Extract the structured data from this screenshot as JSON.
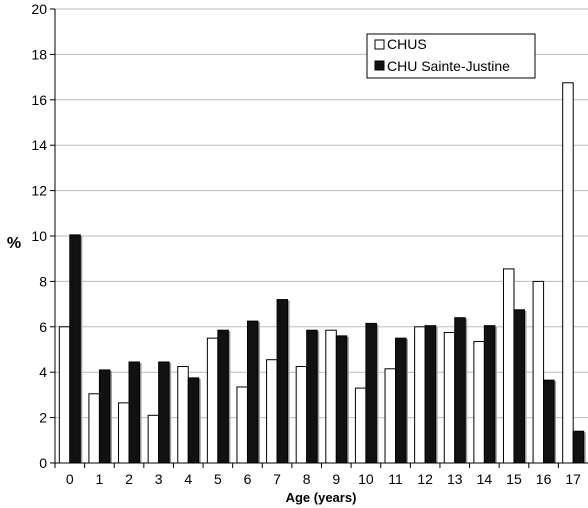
{
  "chart_data": {
    "type": "bar",
    "xlabel": "Age (years)",
    "ylabel": "%",
    "ylim": [
      0,
      20
    ],
    "yticks": [
      0,
      2,
      4,
      6,
      8,
      10,
      12,
      14,
      16,
      18,
      20
    ],
    "grid": "horizontal",
    "legend_position": "top-right",
    "categories": [
      "0",
      "1",
      "2",
      "3",
      "4",
      "5",
      "6",
      "7",
      "8",
      "9",
      "10",
      "11",
      "12",
      "13",
      "14",
      "15",
      "16",
      "17"
    ],
    "series": [
      {
        "name": "CHUS",
        "color": "#ffffff",
        "values": [
          6.0,
          3.05,
          2.65,
          2.1,
          4.25,
          5.5,
          3.35,
          4.55,
          4.25,
          5.85,
          3.3,
          4.15,
          6.0,
          5.75,
          5.35,
          8.55,
          8.0,
          16.75
        ]
      },
      {
        "name": "CHU Sainte-Justine",
        "color": "#111111",
        "values": [
          10.05,
          4.1,
          4.45,
          4.45,
          3.75,
          5.85,
          6.25,
          7.2,
          5.85,
          5.6,
          6.15,
          5.5,
          6.05,
          6.4,
          6.05,
          6.75,
          3.65,
          1.4
        ]
      }
    ]
  }
}
